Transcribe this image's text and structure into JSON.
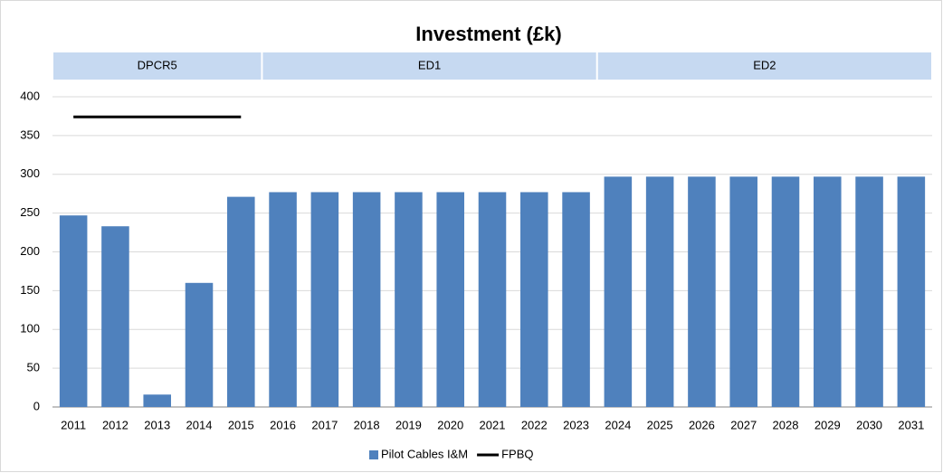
{
  "chart_data": {
    "type": "bar",
    "title": "Investment (£k)",
    "periods": [
      {
        "label": "DPCR5",
        "from": "2011",
        "to": "2015"
      },
      {
        "label": "ED1",
        "from": "2016",
        "to": "2023"
      },
      {
        "label": "ED2",
        "from": "2024",
        "to": "2031"
      }
    ],
    "categories": [
      "2011",
      "2012",
      "2013",
      "2014",
      "2015",
      "2016",
      "2017",
      "2018",
      "2019",
      "2020",
      "2021",
      "2022",
      "2023",
      "2024",
      "2025",
      "2026",
      "2027",
      "2028",
      "2029",
      "2030",
      "2031"
    ],
    "series": [
      {
        "name": "Pilot Cables I&M",
        "type": "bar",
        "color": "#4f81bd",
        "values": [
          247,
          233,
          16,
          160,
          271,
          277,
          277,
          277,
          277,
          277,
          277,
          277,
          277,
          297,
          297,
          297,
          297,
          297,
          297,
          297,
          297
        ]
      },
      {
        "name": "FPBQ",
        "type": "line",
        "color": "#000000",
        "values": [
          374,
          374,
          374,
          374,
          374,
          null,
          null,
          null,
          null,
          null,
          null,
          null,
          null,
          null,
          null,
          null,
          null,
          null,
          null,
          null,
          null
        ]
      }
    ],
    "ylim": [
      0,
      400
    ],
    "yticks": [
      0,
      50,
      100,
      150,
      200,
      250,
      300,
      350,
      400
    ],
    "grid": true,
    "legend": "bottom"
  }
}
